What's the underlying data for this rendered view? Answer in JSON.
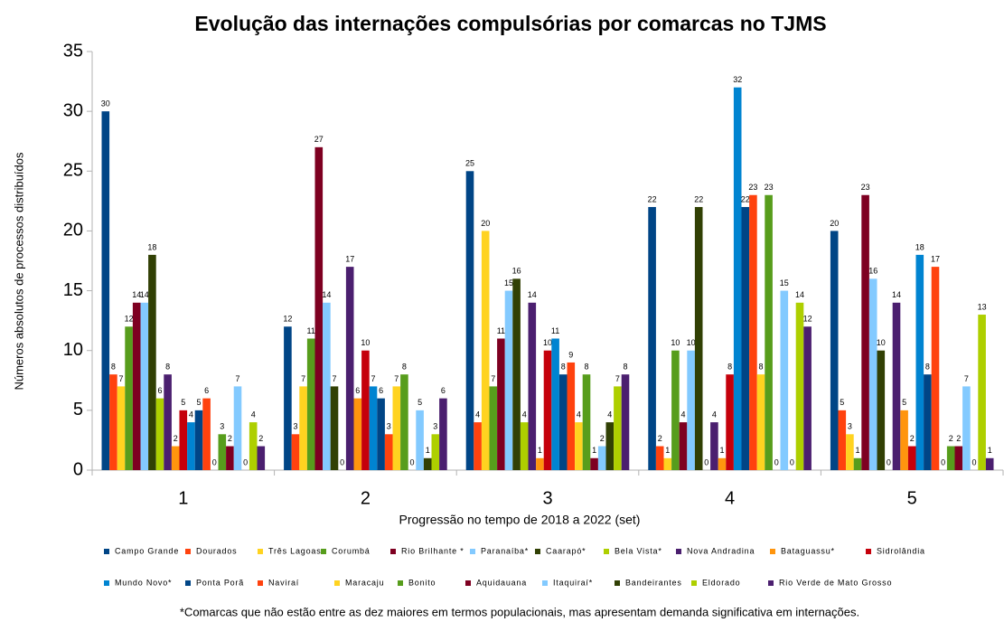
{
  "chart_data": {
    "type": "bar",
    "title": "Evolução das internações compulsórias por comarcas no TJMS",
    "xlabel": "Progressão no tempo de 2018 a 2022 (set)",
    "ylabel": "Números absolutos de processos distribuídos",
    "footnote": "*Comarcas que não estão entre as dez maiores em termos populacionais, mas apresentam demanda significativa em internações.",
    "categories": [
      "1",
      "2",
      "3",
      "4",
      "5"
    ],
    "ylim": [
      0,
      35
    ],
    "yticks": [
      0,
      5,
      10,
      15,
      20,
      25,
      30,
      35
    ],
    "grid": false,
    "legend": "bottom",
    "series": [
      {
        "name": "Campo Grande",
        "color": "#004586",
        "values": [
          30,
          12,
          25,
          22,
          20
        ]
      },
      {
        "name": "Dourados",
        "color": "#ff420e",
        "values": [
          8,
          3,
          4,
          2,
          5
        ]
      },
      {
        "name": "Três Lagoas",
        "color": "#ffd320",
        "values": [
          7,
          7,
          20,
          1,
          3
        ]
      },
      {
        "name": "Corumbá",
        "color": "#579d1c",
        "values": [
          12,
          11,
          7,
          10,
          1
        ]
      },
      {
        "name": "Rio Brilhante *",
        "color": "#7e0021",
        "values": [
          14,
          27,
          11,
          4,
          23
        ]
      },
      {
        "name": "Paranaíba*",
        "color": "#83caff",
        "values": [
          14,
          14,
          15,
          10,
          16
        ]
      },
      {
        "name": "Caarapó*",
        "color": "#314004",
        "values": [
          18,
          7,
          16,
          22,
          10
        ]
      },
      {
        "name": "Bela Vista*",
        "color": "#aecf00",
        "values": [
          6,
          0,
          4,
          0,
          0
        ]
      },
      {
        "name": "Nova Andradina",
        "color": "#4b1f6f",
        "values": [
          8,
          17,
          14,
          4,
          14
        ]
      },
      {
        "name": "Bataguassu*",
        "color": "#ff950e",
        "values": [
          2,
          6,
          1,
          1,
          5
        ]
      },
      {
        "name": "Sidrolândia",
        "color": "#c5000b",
        "values": [
          5,
          10,
          10,
          8,
          2
        ]
      },
      {
        "name": "Mundo Novo*",
        "color": "#0084d1",
        "values": [
          4,
          7,
          11,
          32,
          18
        ]
      },
      {
        "name": "Ponta Porã",
        "color": "#004586",
        "values": [
          5,
          6,
          8,
          22,
          8
        ]
      },
      {
        "name": "Naviraí",
        "color": "#ff420e",
        "values": [
          6,
          3,
          9,
          23,
          17
        ]
      },
      {
        "name": "Maracaju",
        "color": "#ffd320",
        "values": [
          0,
          7,
          4,
          8,
          0
        ]
      },
      {
        "name": "Bonito",
        "color": "#579d1c",
        "values": [
          3,
          8,
          8,
          23,
          2
        ]
      },
      {
        "name": "Aquidauana",
        "color": "#7e0021",
        "values": [
          2,
          0,
          1,
          0,
          2
        ]
      },
      {
        "name": "Itaquiraí*",
        "color": "#83caff",
        "values": [
          7,
          5,
          2,
          15,
          7
        ]
      },
      {
        "name": "Bandeirantes",
        "color": "#314004",
        "values": [
          0,
          1,
          4,
          0,
          0
        ]
      },
      {
        "name": "Eldorado",
        "color": "#aecf00",
        "values": [
          4,
          3,
          7,
          14,
          13
        ]
      },
      {
        "name": "Rio Verde de Mato Grosso",
        "color": "#4b1f6f",
        "values": [
          2,
          6,
          8,
          12,
          1
        ]
      }
    ]
  }
}
